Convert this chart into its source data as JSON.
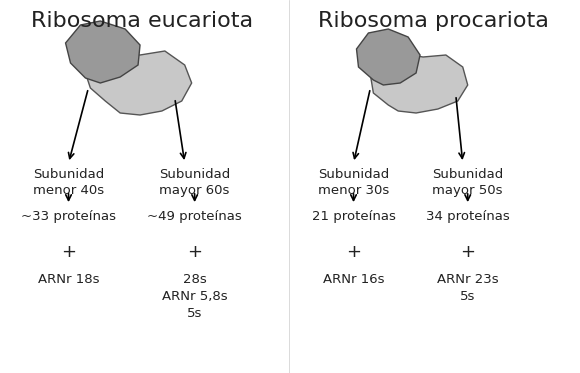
{
  "title_euc": "Ribosoma eucariota",
  "title_pro": "Ribosoma procariota",
  "bg_color": "#ffffff",
  "text_color": "#333333",
  "light_gray": "#c8c8c8",
  "dark_gray": "#999999",
  "title_fontsize": 16,
  "label_fontsize": 10,
  "euc_left_label1": "Subunidad",
  "euc_left_label2": "menor 40s",
  "euc_left_proteins": "~33 proteínas",
  "euc_left_plus": "+",
  "euc_left_arnr": "ARNr 18s",
  "euc_right_label1": "Subunidad",
  "euc_right_label2": "mayor 60s",
  "euc_right_proteins": "~49 proteínas",
  "euc_right_plus": "+",
  "euc_right_arnr": "28s\nARNr 5,8s\n5s",
  "pro_left_label1": "Subunidad",
  "pro_left_label2": "menor 30s",
  "pro_left_proteins": "21 proteínas",
  "pro_left_plus": "+",
  "pro_left_arnr": "ARNr 16s",
  "pro_right_label1": "Subunidad",
  "pro_right_label2": "mayor 50s",
  "pro_right_proteins": "34 proteínas",
  "pro_right_plus": "+",
  "pro_right_arnr": "ARNr 23s\n5s"
}
